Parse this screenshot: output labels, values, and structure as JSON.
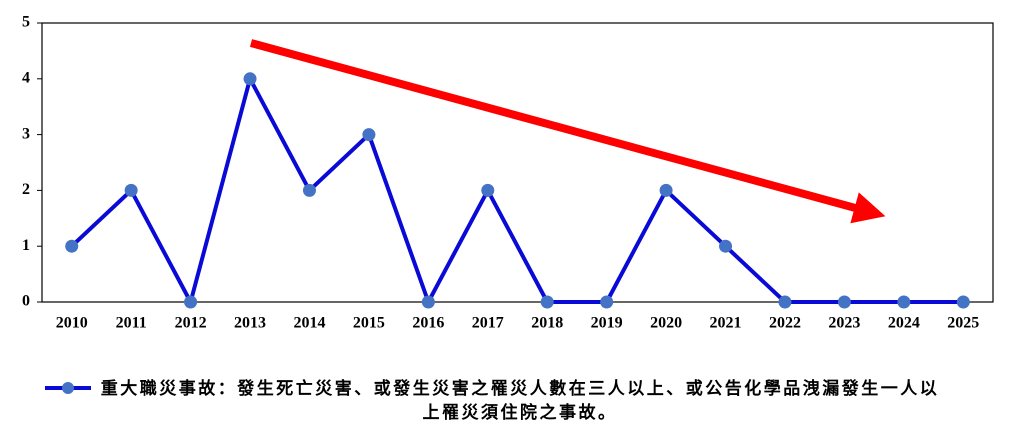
{
  "chart_data": {
    "type": "line",
    "categories": [
      "2010",
      "2011",
      "2012",
      "2013",
      "2014",
      "2015",
      "2016",
      "2017",
      "2018",
      "2019",
      "2020",
      "2021",
      "2022",
      "2023",
      "2024",
      "2025"
    ],
    "series": [
      {
        "name": "重大職災事故：發生死亡災害、或發生災害之罹災人數在三人以上、或公告化學品洩漏發生一人以上罹災須住院之事故。",
        "color": "#0a0ad6",
        "values": [
          1,
          2,
          0,
          4,
          2,
          3,
          0,
          2,
          0,
          0,
          2,
          1,
          0,
          0,
          0,
          0
        ]
      }
    ],
    "ylim": [
      0,
      5
    ],
    "yticks": [
      0,
      1,
      2,
      3,
      4,
      5
    ],
    "grid": false,
    "legend": "bottom"
  }
}
